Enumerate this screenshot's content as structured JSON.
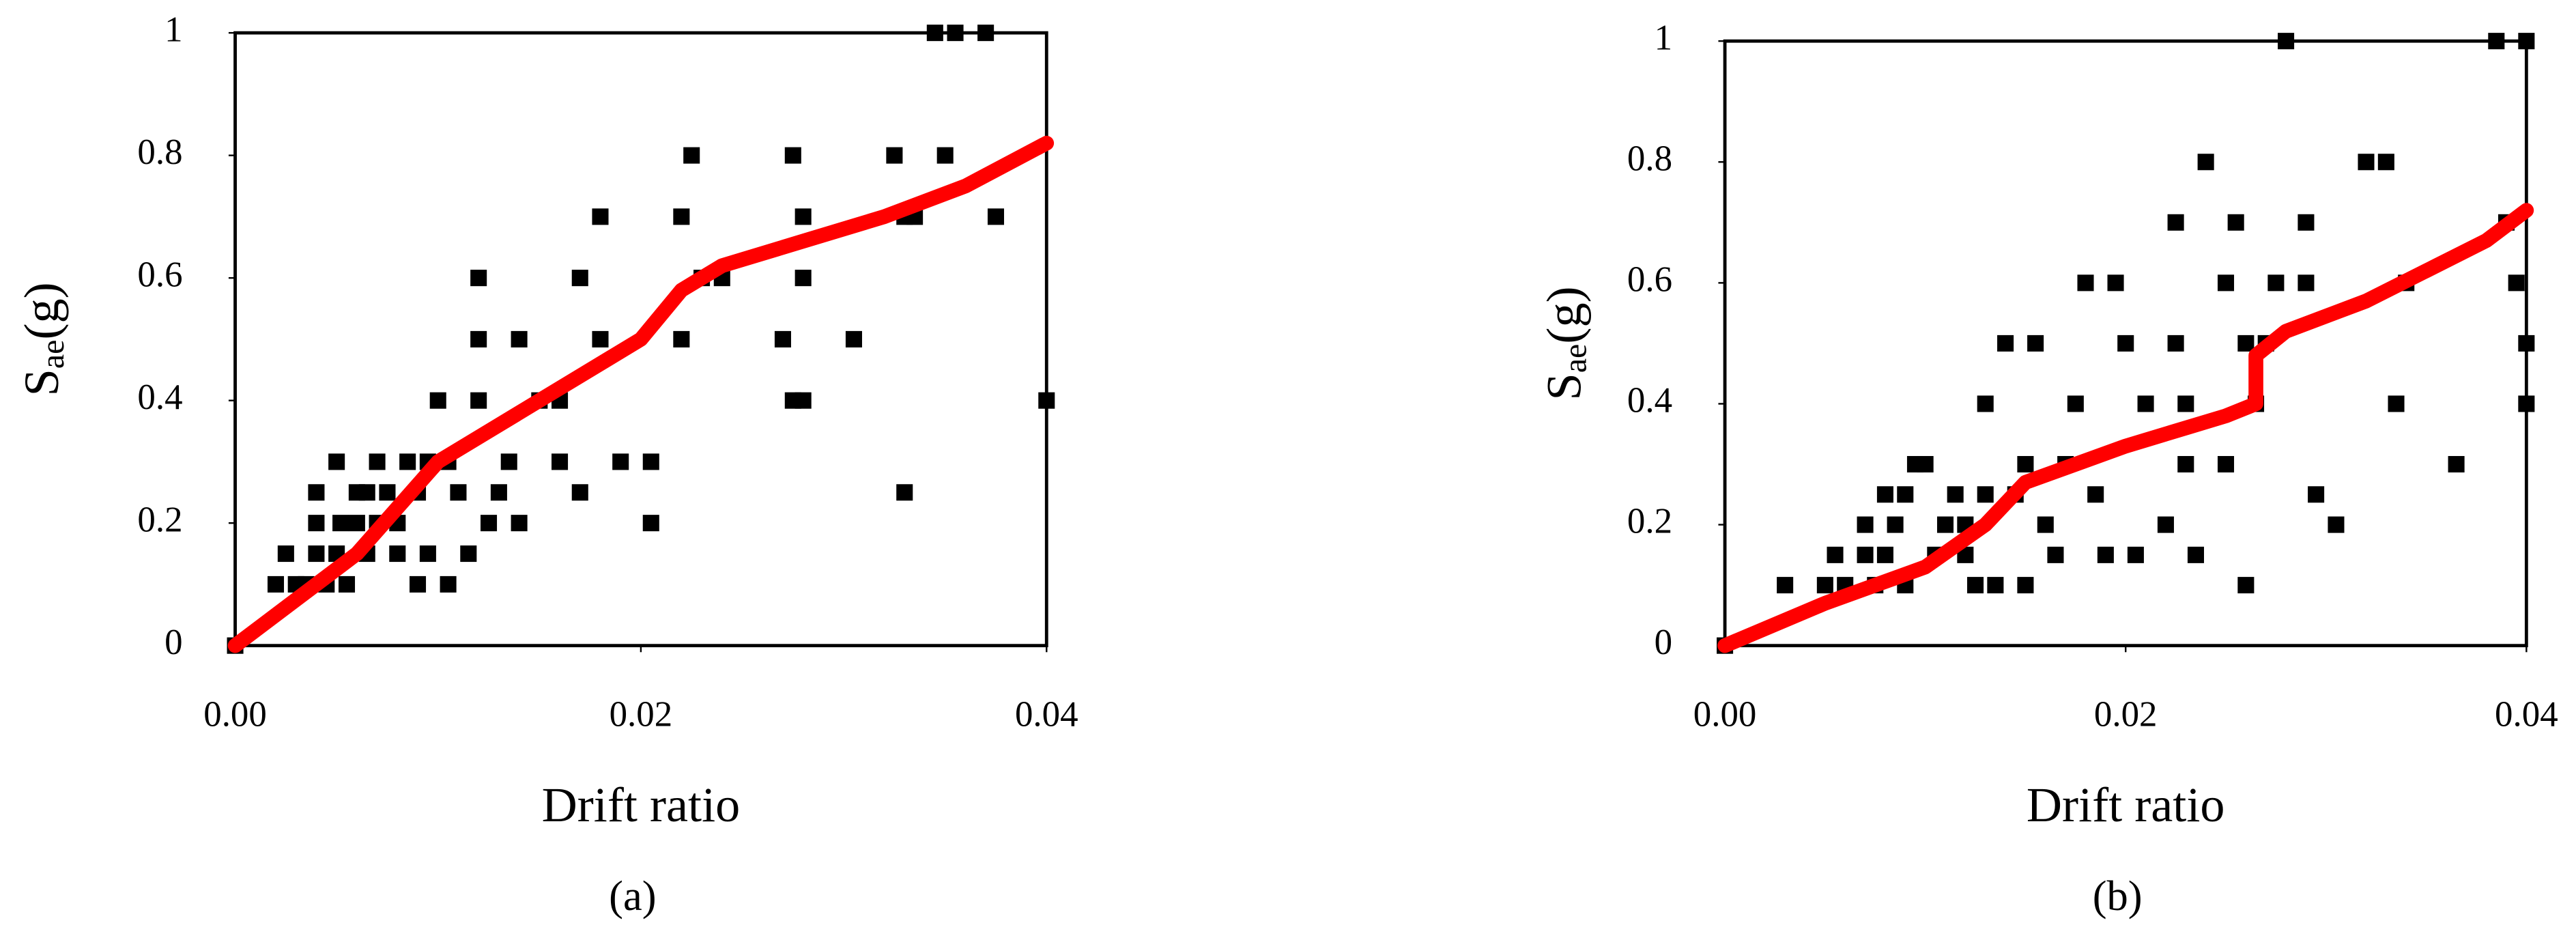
{
  "chart_data": [
    {
      "type": "scatter",
      "caption": "(a)",
      "x_label": "Drift ratio",
      "y_label": [
        "S",
        "ae",
        "(g)"
      ],
      "xlim": [
        0,
        0.04
      ],
      "ylim": [
        0,
        1
      ],
      "xticks": [
        {
          "value": 0,
          "label": "0.00"
        },
        {
          "value": 0.02,
          "label": "0.02"
        },
        {
          "value": 0.04,
          "label": "0.04"
        }
      ],
      "yticks": [
        0,
        0.2,
        0.4,
        0.6,
        0.8,
        1
      ],
      "series": [
        {
          "style": "square",
          "color": "#000000",
          "x": [
            0,
            0.002,
            0.0025,
            0.003,
            0.0035,
            0.004,
            0.004,
            0.004,
            0.0045,
            0.005,
            0.005,
            0.0052,
            0.0055,
            0.006,
            0.006,
            0.0065,
            0.0065,
            0.007,
            0.007,
            0.0075,
            0.008,
            0.008,
            0.0085,
            0.009,
            0.009,
            0.0095,
            0.0095,
            0.01,
            0.0105,
            0.0105,
            0.011,
            0.0115,
            0.012,
            0.012,
            0.012,
            0.0125,
            0.013,
            0.0135,
            0.014,
            0.014,
            0.015,
            0.016,
            0.016,
            0.017,
            0.017,
            0.018,
            0.018,
            0.019,
            0.0205,
            0.0205,
            0.022,
            0.022,
            0.0225,
            0.023,
            0.024,
            0.027,
            0.0275,
            0.0275,
            0.028,
            0.028,
            0.028,
            0.0305,
            0.0325,
            0.033,
            0.033,
            0.0335,
            0.0345,
            0.035,
            0.0355,
            0.037,
            0.0375,
            0.04
          ],
          "values": [
            0,
            0.1,
            0.15,
            0.1,
            0.1,
            0.15,
            0.2,
            0.25,
            0.1,
            0.15,
            0.3,
            0.2,
            0.1,
            0.25,
            0.2,
            0.15,
            0.25,
            0.2,
            0.3,
            0.25,
            0.2,
            0.15,
            0.3,
            0.1,
            0.25,
            0.15,
            0.3,
            0.4,
            0.3,
            0.1,
            0.25,
            0.15,
            0.5,
            0.6,
            0.4,
            0.2,
            0.25,
            0.3,
            0.5,
            0.2,
            0.4,
            0.4,
            0.3,
            0.6,
            0.25,
            0.5,
            0.7,
            0.3,
            0.3,
            0.2,
            0.7,
            0.5,
            0.8,
            0.6,
            0.6,
            0.5,
            0.8,
            0.4,
            0.7,
            0.6,
            0.4,
            0.5,
            0.8,
            0.25,
            0.7,
            0.7,
            1,
            0.8,
            1,
            1,
            0.7,
            0.4
          ]
        },
        {
          "style": "line",
          "color": "#ff0000",
          "x": [
            0,
            0.006,
            0.01,
            0.015,
            0.02,
            0.022,
            0.024,
            0.028,
            0.032,
            0.036,
            0.04
          ],
          "values": [
            0,
            0.15,
            0.3,
            0.4,
            0.5,
            0.58,
            0.62,
            0.66,
            0.7,
            0.75,
            0.82
          ]
        }
      ]
    },
    {
      "type": "scatter",
      "caption": "(b)",
      "x_label": "Drift ratio",
      "y_label": [
        "S",
        "ae",
        "(g)"
      ],
      "xlim": [
        0,
        0.04
      ],
      "ylim": [
        0,
        1
      ],
      "xticks": [
        {
          "value": 0,
          "label": "0.00"
        },
        {
          "value": 0.02,
          "label": "0.02"
        },
        {
          "value": 0.04,
          "label": "0.04"
        }
      ],
      "yticks": [
        0,
        0.2,
        0.4,
        0.6,
        0.8,
        1
      ],
      "series": [
        {
          "style": "square",
          "color": "#000000",
          "x": [
            0,
            0.003,
            0.005,
            0.0055,
            0.006,
            0.007,
            0.007,
            0.0075,
            0.008,
            0.008,
            0.0085,
            0.009,
            0.009,
            0.0095,
            0.01,
            0.0105,
            0.011,
            0.0115,
            0.012,
            0.012,
            0.0125,
            0.013,
            0.013,
            0.0135,
            0.014,
            0.0145,
            0.015,
            0.015,
            0.0155,
            0.016,
            0.0165,
            0.017,
            0.0175,
            0.018,
            0.0185,
            0.019,
            0.0195,
            0.02,
            0.0205,
            0.021,
            0.022,
            0.0225,
            0.0225,
            0.023,
            0.023,
            0.0235,
            0.024,
            0.025,
            0.025,
            0.0255,
            0.026,
            0.026,
            0.0265,
            0.027,
            0.0275,
            0.028,
            0.029,
            0.029,
            0.0295,
            0.0305,
            0.032,
            0.033,
            0.0335,
            0.034,
            0.0365,
            0.0385,
            0.039,
            0.0395,
            0.04,
            0.04,
            0.04
          ],
          "values": [
            0,
            0.1,
            0.1,
            0.15,
            0.1,
            0.15,
            0.2,
            0.1,
            0.25,
            0.15,
            0.2,
            0.1,
            0.25,
            0.3,
            0.3,
            0.15,
            0.2,
            0.25,
            0.15,
            0.2,
            0.1,
            0.4,
            0.25,
            0.1,
            0.5,
            0.25,
            0.3,
            0.1,
            0.5,
            0.2,
            0.15,
            0.3,
            0.4,
            0.6,
            0.25,
            0.15,
            0.6,
            0.5,
            0.15,
            0.4,
            0.2,
            0.7,
            0.5,
            0.4,
            0.3,
            0.15,
            0.8,
            0.6,
            0.3,
            0.7,
            0.5,
            0.1,
            0.4,
            0.5,
            0.6,
            1,
            0.7,
            0.6,
            0.25,
            0.2,
            0.8,
            0.8,
            0.4,
            0.6,
            0.3,
            1,
            0.7,
            0.6,
            1,
            0.5,
            0.4
          ]
        },
        {
          "style": "line",
          "color": "#ff0000",
          "x": [
            0,
            0.005,
            0.01,
            0.013,
            0.015,
            0.02,
            0.025,
            0.0265,
            0.0265,
            0.028,
            0.032,
            0.035,
            0.038,
            0.04
          ],
          "values": [
            0,
            0.07,
            0.13,
            0.2,
            0.27,
            0.33,
            0.38,
            0.4,
            0.48,
            0.52,
            0.57,
            0.62,
            0.67,
            0.72
          ]
        }
      ]
    }
  ]
}
